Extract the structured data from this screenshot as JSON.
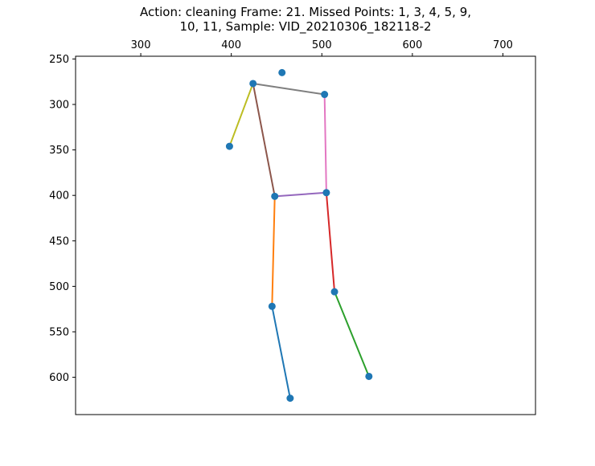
{
  "chart_data": {
    "type": "scatter",
    "title": "Action: cleaning   Frame: 21. Missed Points: 1, 3, 4, 5, 9,\n10, 11,  Sample: VID_20210306_182118-2",
    "xlabel": "",
    "ylabel": "",
    "xlim": [
      228,
      736
    ],
    "ylim": [
      641,
      247
    ],
    "x_ticks": [
      300,
      400,
      500,
      600,
      700
    ],
    "y_ticks": [
      250,
      300,
      350,
      400,
      450,
      500,
      550,
      600
    ],
    "x_axis_position": "top",
    "y_axis_inverted": true,
    "grid": false,
    "point_color": "#1f77b4",
    "points": [
      {
        "x": 456,
        "y": 265
      },
      {
        "x": 424,
        "y": 277
      },
      {
        "x": 503,
        "y": 289
      },
      {
        "x": 398,
        "y": 346
      },
      {
        "x": 448,
        "y": 401
      },
      {
        "x": 505,
        "y": 397
      },
      {
        "x": 514,
        "y": 506
      },
      {
        "x": 445,
        "y": 522
      },
      {
        "x": 552,
        "y": 599
      },
      {
        "x": 465,
        "y": 623
      }
    ],
    "segments": [
      {
        "from": [
          445,
          522
        ],
        "to": [
          465,
          623
        ],
        "color": "#1f77b4"
      },
      {
        "from": [
          448,
          401
        ],
        "to": [
          445,
          522
        ],
        "color": "#ff7f0e"
      },
      {
        "from": [
          514,
          506
        ],
        "to": [
          552,
          599
        ],
        "color": "#2ca02c"
      },
      {
        "from": [
          505,
          397
        ],
        "to": [
          514,
          506
        ],
        "color": "#d62728"
      },
      {
        "from": [
          448,
          401
        ],
        "to": [
          505,
          397
        ],
        "color": "#9467bd"
      },
      {
        "from": [
          424,
          277
        ],
        "to": [
          448,
          401
        ],
        "color": "#8c564b"
      },
      {
        "from": [
          503,
          289
        ],
        "to": [
          505,
          397
        ],
        "color": "#e377c2"
      },
      {
        "from": [
          424,
          277
        ],
        "to": [
          503,
          289
        ],
        "color": "#7f7f7f"
      },
      {
        "from": [
          424,
          277
        ],
        "to": [
          398,
          346
        ],
        "color": "#bcbd22"
      }
    ]
  }
}
